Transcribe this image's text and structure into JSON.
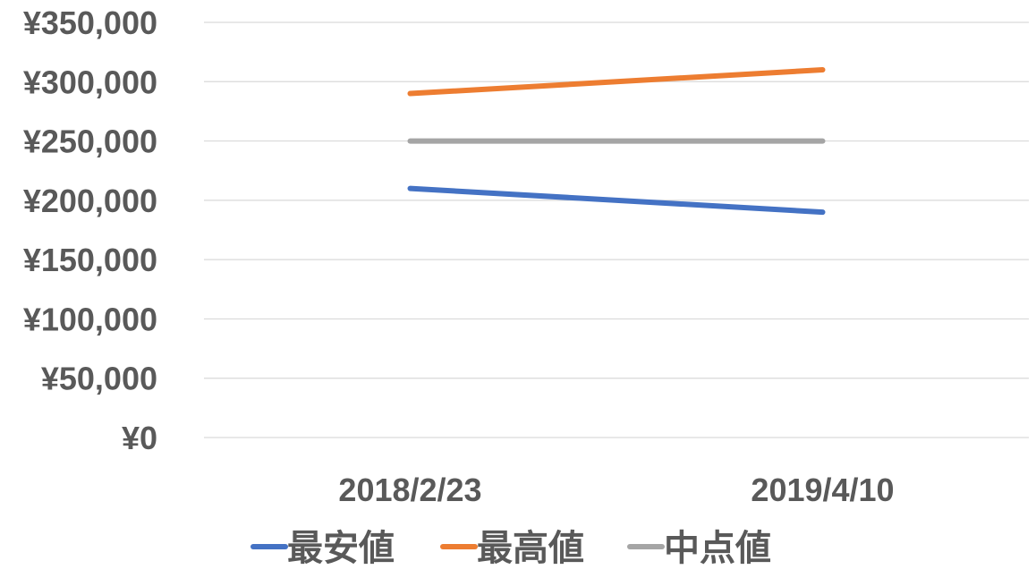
{
  "chart_data": {
    "type": "line",
    "categories": [
      "2018/2/23",
      "2019/4/10"
    ],
    "series": [
      {
        "name": "最安値",
        "values": [
          210000,
          190000
        ],
        "color": "#4472C4"
      },
      {
        "name": "最高値",
        "values": [
          290000,
          310000
        ],
        "color": "#ED7D31"
      },
      {
        "name": "中点値",
        "values": [
          250000,
          250000
        ],
        "color": "#A5A5A5"
      }
    ],
    "ylim": [
      0,
      350000
    ],
    "y_ticks": [
      "¥0",
      "¥50,000",
      "¥100,000",
      "¥150,000",
      "¥200,000",
      "¥250,000",
      "¥300,000",
      "¥350,000"
    ],
    "grid": true,
    "legend_position": "bottom",
    "title": "",
    "xlabel": "",
    "ylabel": ""
  }
}
